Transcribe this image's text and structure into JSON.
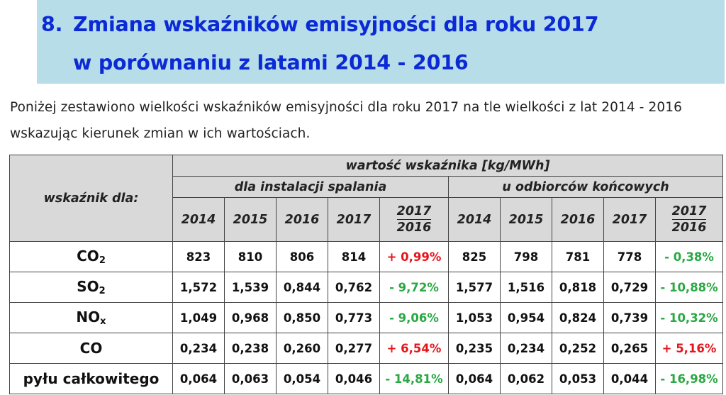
{
  "heading": {
    "number": "8.",
    "line1": "Zmiana wskaźników emisyjności dla roku 2017",
    "line2": "w porównaniu z latami 2014 - 2016"
  },
  "intro": "Poniżej zestawiono wielkości wskaźników emisyjności dla roku 2017 na tle wielkości z lat 2014 - 2016 wskazując kierunek zmian w ich wartościach.",
  "table": {
    "row_header": "wskaźnik dla:",
    "main_header": "wartość wskaźnika [kg/MWh]",
    "group1": "dla instalacji spalania",
    "group2": "u odbiorców końcowych",
    "years": [
      "2014",
      "2015",
      "2016",
      "2017"
    ],
    "ratio_top": "2017",
    "ratio_bottom": "2016",
    "rows": [
      {
        "label_main": "CO",
        "label_sub": "2",
        "g1": [
          "823",
          "810",
          "806",
          "814"
        ],
        "g1_change": "+ 0,99%",
        "g1_dir": "pos",
        "g2": [
          "825",
          "798",
          "781",
          "778"
        ],
        "g2_change": "- 0,38%",
        "g2_dir": "neg"
      },
      {
        "label_main": "SO",
        "label_sub": "2",
        "g1": [
          "1,572",
          "1,539",
          "0,844",
          "0,762"
        ],
        "g1_change": "- 9,72%",
        "g1_dir": "neg",
        "g2": [
          "1,577",
          "1,516",
          "0,818",
          "0,729"
        ],
        "g2_change": "- 10,88%",
        "g2_dir": "neg"
      },
      {
        "label_main": "NO",
        "label_sub": "x",
        "g1": [
          "1,049",
          "0,968",
          "0,850",
          "0,773"
        ],
        "g1_change": "- 9,06%",
        "g1_dir": "neg",
        "g2": [
          "1,053",
          "0,954",
          "0,824",
          "0,739"
        ],
        "g2_change": "- 10,32%",
        "g2_dir": "neg"
      },
      {
        "label_main": "CO",
        "label_sub": "",
        "g1": [
          "0,234",
          "0,238",
          "0,260",
          "0,277"
        ],
        "g1_change": "+ 6,54%",
        "g1_dir": "pos",
        "g2": [
          "0,235",
          "0,234",
          "0,252",
          "0,265"
        ],
        "g2_change": "+ 5,16%",
        "g2_dir": "pos"
      },
      {
        "label_main": "pyłu całkowitego",
        "label_sub": "",
        "g1": [
          "0,064",
          "0,063",
          "0,054",
          "0,046"
        ],
        "g1_change": "- 14,81%",
        "g1_dir": "neg",
        "g2": [
          "0,064",
          "0,062",
          "0,053",
          "0,044"
        ],
        "g2_change": "- 16,98%",
        "g2_dir": "neg"
      }
    ]
  }
}
